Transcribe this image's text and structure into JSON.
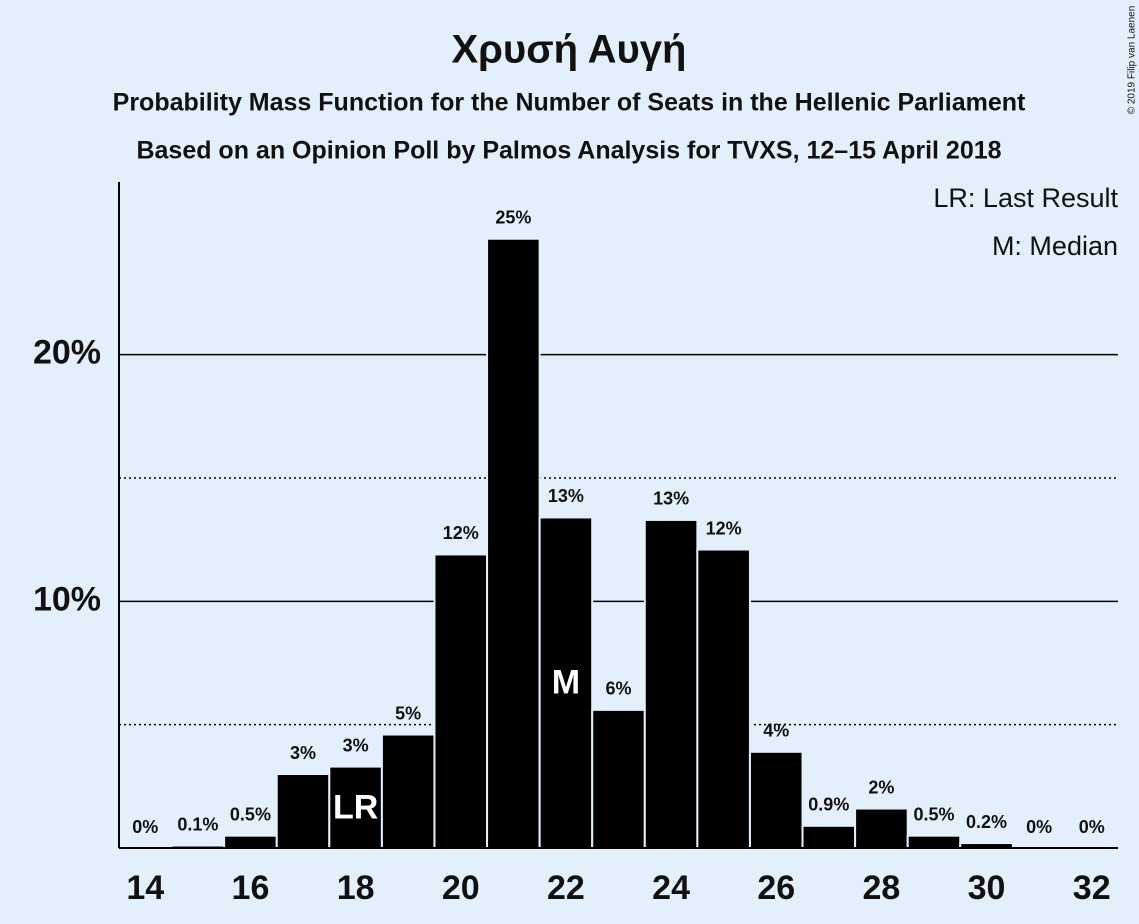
{
  "chart_data": {
    "type": "bar",
    "title": "Χρυσή Αυγή",
    "subtitle": "Probability Mass Function for the Number of Seats in the Hellenic Parliament",
    "subtitle2": "Based on an Opinion Poll by Palmos Analysis for TVXS, 12–15 April 2018",
    "copyright": "© 2019 Filip van Laenen",
    "legend": [
      "LR: Last Result",
      "M: Median"
    ],
    "legend_position": "top-right",
    "color": "#000000",
    "x": [
      14,
      15,
      16,
      17,
      18,
      19,
      20,
      21,
      22,
      23,
      24,
      25,
      26,
      27,
      28,
      29,
      30,
      31,
      32
    ],
    "values": [
      0,
      0.1,
      0.5,
      3.0,
      3.3,
      4.6,
      11.9,
      24.7,
      13.4,
      5.6,
      13.3,
      12.1,
      3.9,
      0.9,
      1.6,
      0.5,
      0.2,
      0,
      0
    ],
    "value_labels": [
      "0%",
      "0.1%",
      "0.5%",
      "3%",
      "3%",
      "5%",
      "12%",
      "25%",
      "13%",
      "6%",
      "13%",
      "12%",
      "4%",
      "0.9%",
      "2%",
      "0.5%",
      "0.2%",
      "0%",
      "0%"
    ],
    "annotations": [
      {
        "x": 18,
        "text": "LR"
      },
      {
        "x": 22,
        "text": "M"
      }
    ],
    "xlim": [
      13.5,
      32.5
    ],
    "xticks": [
      14,
      16,
      18,
      20,
      22,
      24,
      26,
      28,
      30,
      32
    ],
    "ylim": [
      0,
      27
    ],
    "yticks": [
      {
        "value": 10,
        "label": "10%"
      },
      {
        "value": 20,
        "label": "20%"
      }
    ],
    "minor_yticks": [
      5,
      15
    ],
    "grid": true
  }
}
